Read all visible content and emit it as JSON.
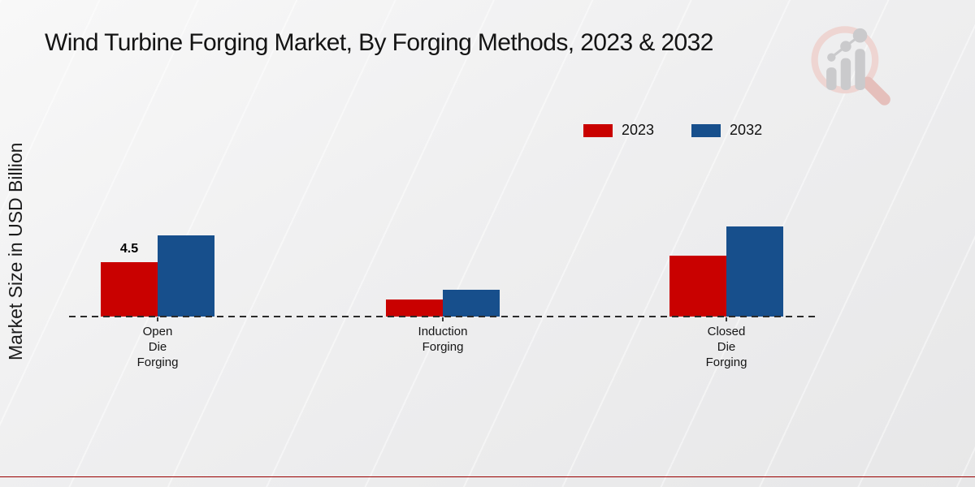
{
  "header": {
    "title": "Wind Turbine Forging Market, By Forging Methods, 2023 & 2032"
  },
  "chart_data": {
    "type": "bar",
    "title": "Wind Turbine Forging Market, By Forging Methods, 2023 & 2032",
    "ylabel": "Market Size in USD Billion",
    "xlabel": "",
    "categories": [
      "Open Die Forging",
      "Induction Forging",
      "Closed Die Forging"
    ],
    "series": [
      {
        "name": "2023",
        "color": "#c90100",
        "values": [
          4.5,
          1.4,
          5.0
        ],
        "value_labels": [
          "4.5",
          "",
          ""
        ]
      },
      {
        "name": "2032",
        "color": "#174f8c",
        "values": [
          6.7,
          2.2,
          7.45
        ],
        "value_labels": [
          "",
          "",
          ""
        ]
      }
    ],
    "legend_position": "top-right",
    "grid": false,
    "baseline": "dashed",
    "ylim": [
      0,
      8
    ],
    "annotations": [
      "Only the 2023 Open Die Forging bar is labeled: 4.5"
    ]
  },
  "branding": {
    "footer_stripe_color": "#c30101",
    "logo_icon": "magnifier-bar-chart-logo",
    "logo_circle_color": "#eed3d0",
    "logo_bars_color": "#c7c7ca"
  }
}
